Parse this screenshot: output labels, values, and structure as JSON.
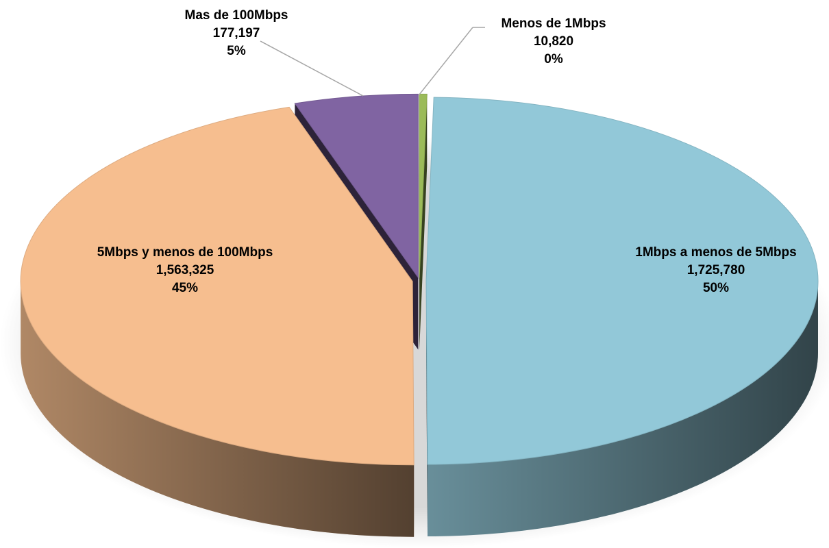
{
  "chart_data": {
    "type": "pie3d",
    "categories": [
      "Menos de 1Mbps",
      "1Mbps a menos de 5Mbps",
      "5Mbps y menos de 100Mbps",
      "Mas de 100Mbps"
    ],
    "values": [
      10820,
      1725780,
      1563325,
      177197
    ],
    "value_labels": [
      "10,820",
      "1,725,780",
      "1,563,325",
      "177,197"
    ],
    "percentages": [
      0,
      50,
      45,
      5
    ],
    "percentage_labels": [
      "0%",
      "50%",
      "45%",
      "5%"
    ],
    "colors": [
      "#9bbb59",
      "#92c8d8",
      "#f6be8f",
      "#8064a2"
    ]
  }
}
